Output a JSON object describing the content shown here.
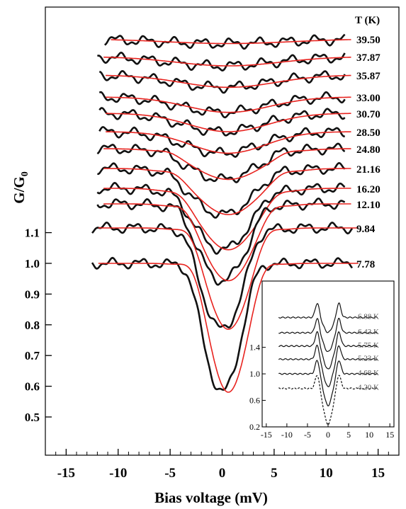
{
  "chart_data": [
    {
      "type": "line",
      "xlabel": "Bias voltage (mV)",
      "ylabel": "G/G0",
      "xlim": [
        -17,
        17
      ],
      "xticks": [
        "-15",
        "-10",
        "-5",
        "0",
        "5",
        "10",
        "15"
      ],
      "yticks": [
        "0.5",
        "0.6",
        "0.7",
        "0.8",
        "0.9",
        "1.0",
        "1.1"
      ],
      "temperature_header": "T (K)",
      "series_colors": {
        "data": "#111111",
        "fit": "#e8231f"
      },
      "series": [
        {
          "temperature": "39.50",
          "offset": 3.55,
          "xrange": [
            -11.3,
            11.8
          ],
          "dip_depth": 0.015,
          "dip_width": 6.0,
          "peak": 0.0
        },
        {
          "temperature": "37.87",
          "offset": 3.44,
          "xrange": [
            -12.0,
            11.8
          ],
          "dip_depth": 0.03,
          "dip_width": 5.0,
          "peak": 0.0
        },
        {
          "temperature": "35.87",
          "offset": 3.33,
          "xrange": [
            -11.8,
            11.8
          ],
          "dip_depth": 0.04,
          "dip_width": 4.5,
          "peak": 0.0
        },
        {
          "temperature": "33.00",
          "offset": 3.22,
          "xrange": [
            -11.8,
            11.8
          ],
          "dip_depth": 0.05,
          "dip_width": 4.0,
          "peak": 0.0
        },
        {
          "temperature": "30.70",
          "offset": 3.12,
          "xrange": [
            -11.8,
            11.8
          ],
          "dip_depth": 0.06,
          "dip_width": 3.8,
          "peak": 0.0
        },
        {
          "temperature": "28.50",
          "offset": 3.01,
          "xrange": [
            -11.8,
            11.8
          ],
          "dip_depth": 0.07,
          "dip_width": 3.6,
          "peak": 0.0
        },
        {
          "temperature": "24.80",
          "offset": 2.9,
          "xrange": [
            -12.0,
            11.8
          ],
          "dip_depth": 0.1,
          "dip_width": 3.3,
          "peak": 0.01
        },
        {
          "temperature": "21.16",
          "offset": 2.8,
          "xrange": [
            -12.0,
            11.8
          ],
          "dip_depth": 0.15,
          "dip_width": 3.0,
          "peak": 0.015
        },
        {
          "temperature": "16.20",
          "offset": 2.7,
          "xrange": [
            -12.0,
            11.8
          ],
          "dip_depth": 0.2,
          "dip_width": 2.7,
          "peak": 0.02
        },
        {
          "temperature": "12.10",
          "offset": 2.59,
          "xrange": [
            -12.0,
            11.8
          ],
          "dip_depth": 0.25,
          "dip_width": 2.4,
          "peak": 0.03
        },
        {
          "temperature": "9.84",
          "offset": 2.1,
          "xrange": [
            -12.5,
            12.5
          ],
          "dip_depth": 0.33,
          "dip_width": 2.1,
          "peak": 0.04
        },
        {
          "temperature": "7.78",
          "offset": 1.0,
          "xrange": [
            -12.5,
            12.5
          ],
          "dip_depth": 0.42,
          "dip_width": 1.9,
          "peak": 0.05
        }
      ],
      "inset": {
        "type": "line",
        "xlim": [
          -16,
          16
        ],
        "ylim": [
          0.2,
          2.4
        ],
        "xticks": [
          "-15",
          "-10",
          "-5",
          "0",
          "5",
          "10",
          "15"
        ],
        "yticks": [
          "0.2",
          "0.6",
          "1.0",
          "1.4"
        ],
        "series": [
          {
            "temperature": "6.88 K",
            "offset": 1.85
          },
          {
            "temperature": "6.42 K",
            "offset": 1.62
          },
          {
            "temperature": "5.75 K",
            "offset": 1.42
          },
          {
            "temperature": "5.23 K",
            "offset": 1.22
          },
          {
            "temperature": "4.68 K",
            "offset": 1.0
          },
          {
            "temperature": "4.20 K",
            "offset": 0.78
          }
        ]
      }
    }
  ]
}
